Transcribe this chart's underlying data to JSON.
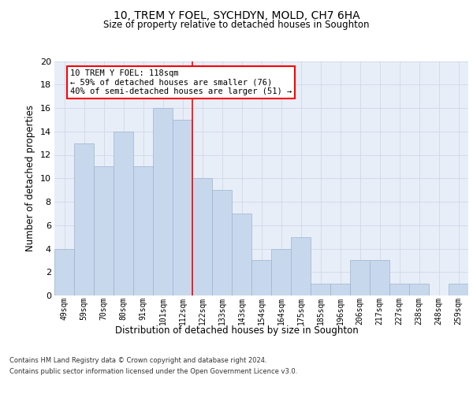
{
  "title1": "10, TREM Y FOEL, SYCHDYN, MOLD, CH7 6HA",
  "title2": "Size of property relative to detached houses in Soughton",
  "xlabel": "Distribution of detached houses by size in Soughton",
  "ylabel": "Number of detached properties",
  "categories": [
    "49sqm",
    "59sqm",
    "70sqm",
    "80sqm",
    "91sqm",
    "101sqm",
    "112sqm",
    "122sqm",
    "133sqm",
    "143sqm",
    "154sqm",
    "164sqm",
    "175sqm",
    "185sqm",
    "196sqm",
    "206sqm",
    "217sqm",
    "227sqm",
    "238sqm",
    "248sqm",
    "259sqm"
  ],
  "values": [
    4,
    13,
    11,
    14,
    11,
    16,
    15,
    10,
    9,
    7,
    3,
    4,
    5,
    1,
    1,
    3,
    3,
    1,
    1,
    0,
    1
  ],
  "bar_color": "#c8d8ec",
  "bar_edge_color": "#9ab3d0",
  "grid_color": "#d0d8e8",
  "background_color": "#e8eef8",
  "vline_x": 6.5,
  "vline_color": "red",
  "annotation_text": "10 TREM Y FOEL: 118sqm\n← 59% of detached houses are smaller (76)\n40% of semi-detached houses are larger (51) →",
  "annotation_box_color": "white",
  "annotation_box_edge": "red",
  "ylim": [
    0,
    20
  ],
  "yticks": [
    0,
    2,
    4,
    6,
    8,
    10,
    12,
    14,
    16,
    18,
    20
  ],
  "footnote1": "Contains HM Land Registry data © Crown copyright and database right 2024.",
  "footnote2": "Contains public sector information licensed under the Open Government Licence v3.0."
}
